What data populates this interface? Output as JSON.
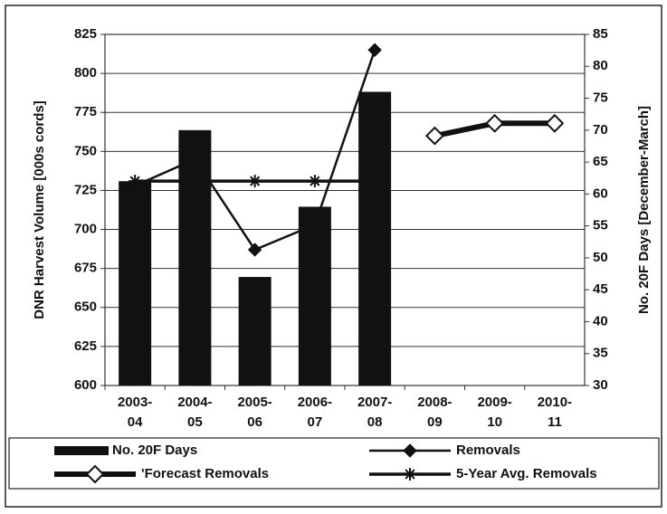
{
  "chart_data": {
    "type": "bar-line",
    "categories": [
      "2003-04",
      "2004-05",
      "2005-06",
      "2006-07",
      "2007-08",
      "2008-09",
      "2009-10",
      "2010-11"
    ],
    "ylabel": "DNR Harvest Volume [000s cords]",
    "y2label": "No. 20F Days [December-March]",
    "ylim": [
      600,
      825
    ],
    "yticks": [
      600,
      625,
      650,
      675,
      700,
      725,
      750,
      775,
      800,
      825
    ],
    "y2lim": [
      30,
      85
    ],
    "y2ticks": [
      30,
      35,
      40,
      45,
      50,
      55,
      60,
      65,
      70,
      75,
      80,
      85
    ],
    "grid": true,
    "series": [
      {
        "name": "No. 20F Days",
        "type": "bar",
        "axis": "y2",
        "color": "#111111",
        "values": [
          62,
          70,
          47,
          58,
          76,
          null,
          null,
          null
        ]
      },
      {
        "name": "Removals",
        "type": "line",
        "marker": "diamond",
        "color": "#111111",
        "values": [
          728,
          745,
          687,
          703,
          815,
          null,
          null,
          null
        ]
      },
      {
        "name": "'Forecast Removals",
        "type": "line",
        "marker": "hollow-diamond",
        "color": "#111111",
        "values": [
          null,
          null,
          null,
          null,
          null,
          760,
          768,
          768
        ]
      },
      {
        "name": "5-Year Avg. Removals",
        "type": "line",
        "marker": "star",
        "color": "#111111",
        "values": [
          731,
          731,
          731,
          731,
          731,
          null,
          null,
          null
        ]
      }
    ]
  }
}
